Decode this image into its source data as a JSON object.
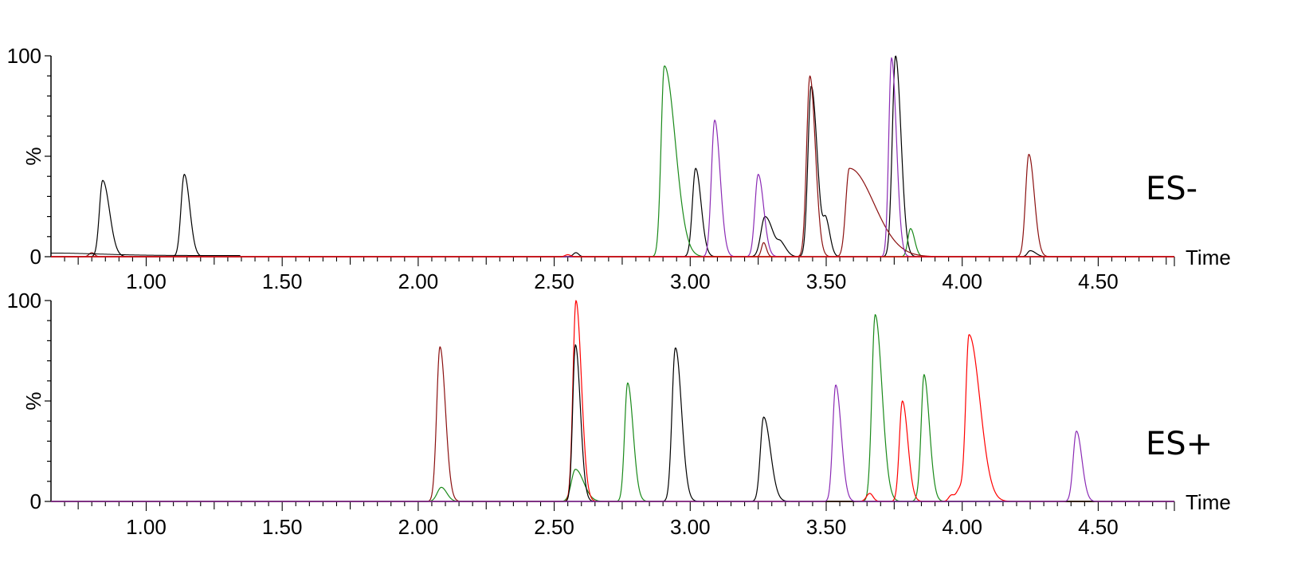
{
  "chart_data": [
    {
      "type": "line",
      "panel": "top",
      "label": "ES-",
      "xlabel": "Time",
      "ylabel": "%",
      "xlim": [
        0.65,
        4.78
      ],
      "ylim": [
        0,
        100
      ],
      "y_ticks": [
        "0",
        "100"
      ],
      "x_ticks": [
        "1.00",
        "1.50",
        "2.00",
        "2.50",
        "3.00",
        "3.50",
        "4.00",
        "4.50"
      ],
      "x_tick_values": [
        1.0,
        1.5,
        2.0,
        2.5,
        3.0,
        3.5,
        4.0,
        4.5
      ],
      "grid": false,
      "legend": "none",
      "series": [
        {
          "color": "#000000",
          "peaks": [
            [
              0.84,
              38,
              0.012,
              0.025
            ],
            [
              1.14,
              41,
              0.012,
              0.02
            ],
            [
              2.58,
              2,
              0.01,
              0.01
            ],
            [
              3.02,
              44,
              0.012,
              0.02
            ],
            [
              3.275,
              20,
              0.015,
              0.03
            ],
            [
              3.335,
              5,
              0.012,
              0.02
            ],
            [
              3.445,
              85,
              0.012,
              0.022
            ],
            [
              3.5,
              16,
              0.01,
              0.015
            ],
            [
              3.755,
              100,
              0.012,
              0.02
            ],
            [
              4.25,
              3,
              0.01,
              0.02
            ]
          ]
        },
        {
          "color": "#1a8a1a",
          "peaks": [
            [
              2.905,
              95,
              0.012,
              0.04
            ],
            [
              3.81,
              14,
              0.01,
              0.015
            ]
          ]
        },
        {
          "color": "#8b1010",
          "peaks": [
            [
              0.8,
              2,
              0.01,
              0.01
            ],
            [
              3.27,
              7,
              0.008,
              0.01
            ],
            [
              3.44,
              90,
              0.012,
              0.02
            ],
            [
              3.585,
              44,
              0.013,
              0.09
            ],
            [
              4.245,
              51,
              0.012,
              0.02
            ]
          ]
        },
        {
          "color": "#8b2bb5",
          "peaks": [
            [
              3.09,
              68,
              0.012,
              0.02
            ],
            [
              3.25,
              41,
              0.012,
              0.02
            ],
            [
              3.74,
              99,
              0.01,
              0.018
            ]
          ]
        },
        {
          "color": "#ff0000",
          "peaks": [
            [
              2.55,
              1,
              0.01,
              0.01
            ]
          ]
        }
      ]
    },
    {
      "type": "line",
      "panel": "bottom",
      "label": "ES+",
      "xlabel": "Time",
      "ylabel": "%",
      "xlim": [
        0.65,
        4.78
      ],
      "ylim": [
        0,
        100
      ],
      "y_ticks": [
        "0",
        "100"
      ],
      "x_ticks": [
        "1.00",
        "1.50",
        "2.00",
        "2.50",
        "3.00",
        "3.50",
        "4.00",
        "4.50"
      ],
      "x_tick_values": [
        1.0,
        1.5,
        2.0,
        2.5,
        3.0,
        3.5,
        4.0,
        4.5
      ],
      "grid": false,
      "legend": "none",
      "series": [
        {
          "color": "#8b1010",
          "peaks": [
            [
              2.08,
              77,
              0.012,
              0.02
            ]
          ]
        },
        {
          "color": "#1a8a1a",
          "peaks": [
            [
              2.085,
              7,
              0.015,
              0.02
            ],
            [
              2.578,
              16,
              0.015,
              0.03
            ],
            [
              2.77,
              59,
              0.011,
              0.02
            ],
            [
              3.68,
              93,
              0.012,
              0.025
            ],
            [
              3.86,
              57,
              0.01,
              0.02
            ],
            [
              3.85,
              7,
              0.012,
              0.02
            ]
          ]
        },
        {
          "color": "#ff0000",
          "peaks": [
            [
              2.58,
              100,
              0.011,
              0.02
            ],
            [
              3.78,
              50,
              0.011,
              0.02
            ],
            [
              4.025,
              83,
              0.012,
              0.04
            ],
            [
              3.99,
              6,
              0.012,
              0.012
            ],
            [
              3.96,
              3,
              0.01,
              0.01
            ],
            [
              3.66,
              4,
              0.012,
              0.012
            ]
          ]
        },
        {
          "color": "#000000",
          "peaks": [
            [
              2.578,
              78,
              0.01,
              0.018
            ],
            [
              2.945,
              75,
              0.012,
              0.022
            ],
            [
              3.27,
              42,
              0.012,
              0.025
            ],
            [
              2.96,
              3,
              0.012,
              0.02
            ]
          ]
        },
        {
          "color": "#8b2bb5",
          "peaks": [
            [
              3.535,
              58,
              0.011,
              0.02
            ],
            [
              4.42,
              35,
              0.012,
              0.02
            ]
          ]
        }
      ]
    }
  ]
}
